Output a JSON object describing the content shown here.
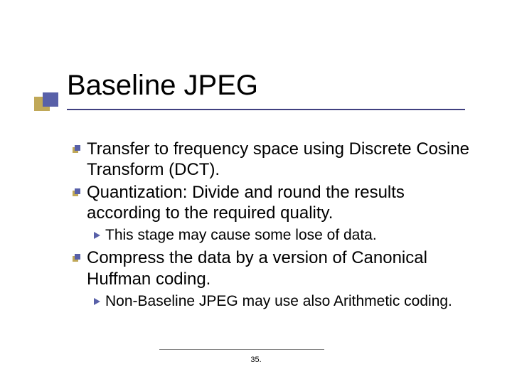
{
  "title": "Baseline JPEG",
  "bullets": {
    "b1": "Transfer to frequency space using Discrete Cosine Transform (DCT).",
    "b2": "Quantization: Divide and round the results according to the required quality.",
    "b2_sub1": "This stage may cause some lose of data.",
    "b3": "Compress the data by a version of Canonical Huffman coding.",
    "b3_sub1": "Non-Baseline JPEG may use also Arithmetic coding."
  },
  "page_number": "35.",
  "colors": {
    "accent_blue": "#5860a8",
    "accent_gold": "#c0a858",
    "underline": "#404080"
  }
}
